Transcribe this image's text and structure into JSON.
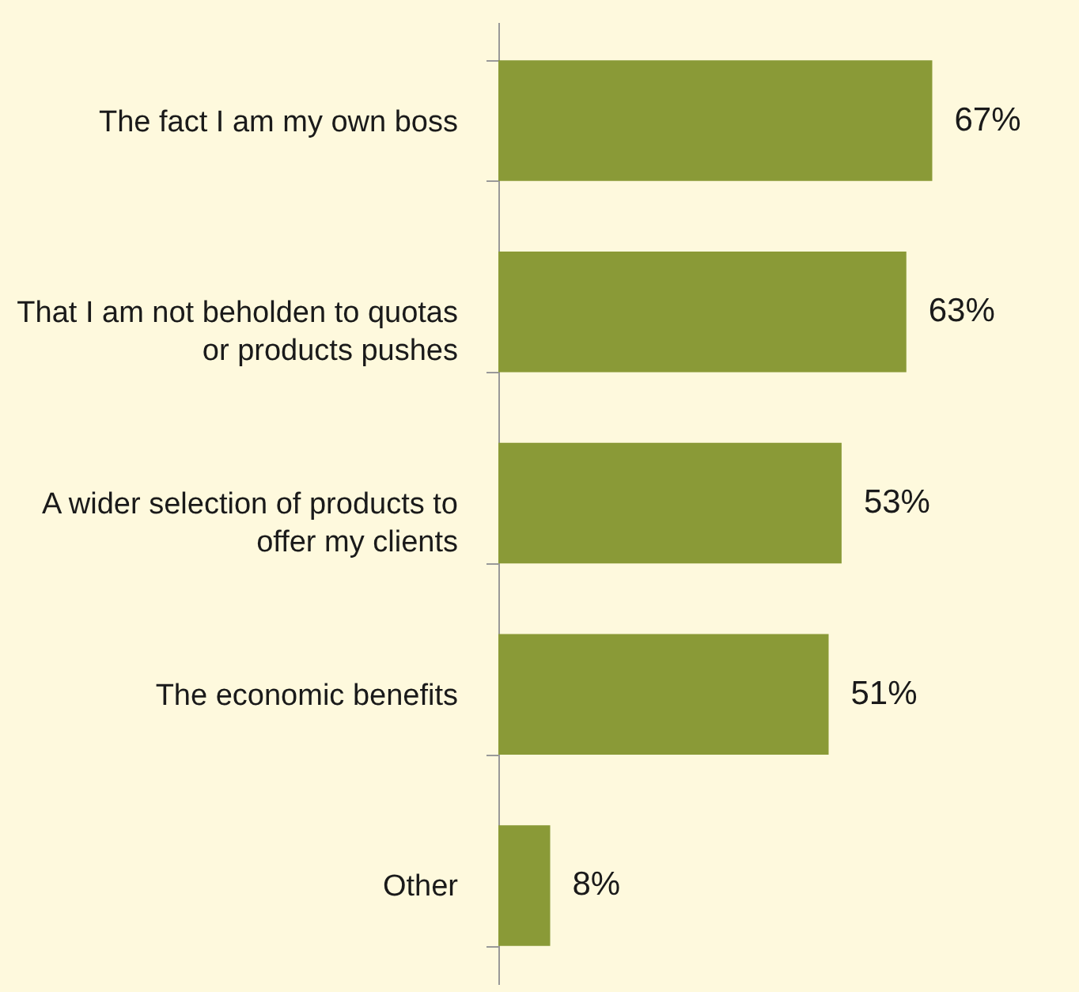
{
  "chart_data": {
    "type": "bar",
    "orientation": "horizontal",
    "categories": [
      "The fact I am my own boss",
      "That I am not beholden to quotas or products pushes",
      "A wider selection of products to offer my clients",
      "The economic benefits",
      "Other"
    ],
    "values": [
      67,
      63,
      53,
      51,
      8
    ],
    "value_labels": [
      "67%",
      "63%",
      "53%",
      "51%",
      "8%"
    ],
    "color": "#8a9a37"
  }
}
